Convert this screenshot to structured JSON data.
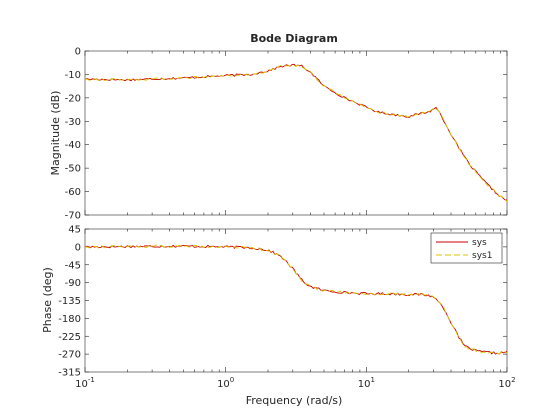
{
  "chart_data": {
    "type": "line",
    "title": "Bode Diagram",
    "xlabel": "Frequency  (rad/s)",
    "xscale": "log",
    "xlim": [
      0.1,
      100
    ],
    "x_tick_labels": [
      {
        "base": "10",
        "exp": "-1"
      },
      {
        "base": "10",
        "exp": "0"
      },
      {
        "base": "10",
        "exp": "1"
      },
      {
        "base": "10",
        "exp": "2"
      }
    ],
    "grid": false,
    "legend_position": "top-right",
    "colors": {
      "sys": "#cc0000",
      "sys1": "#d8c400"
    },
    "series": [
      {
        "name": "sys",
        "style": "solid"
      },
      {
        "name": "sys1",
        "style": "dashed"
      }
    ],
    "magnitude": {
      "ylabel": "Magnitude (dB)",
      "ylim": [
        -70,
        0
      ],
      "yticks": [
        0,
        -10,
        -20,
        -30,
        -40,
        -50,
        -60,
        -70
      ],
      "x": [
        0.1,
        0.2,
        0.5,
        1,
        1.5,
        2,
        2.5,
        3,
        3.5,
        4,
        5,
        7,
        10,
        12,
        15,
        20,
        25,
        28,
        31,
        33,
        38,
        45,
        55,
        70,
        85,
        100
      ],
      "values": [
        -12,
        -12.3,
        -11.5,
        -10.5,
        -10,
        -8.5,
        -6.5,
        -6,
        -6.5,
        -9,
        -15,
        -20,
        -24,
        -26,
        -27,
        -28,
        -26.5,
        -26,
        -24,
        -26,
        -33,
        -41,
        -49,
        -56,
        -61,
        -64
      ]
    },
    "phase": {
      "ylabel": "Phase (deg)",
      "ylim": [
        -315,
        45
      ],
      "yticks": [
        45,
        0,
        -45,
        -90,
        -135,
        -180,
        -225,
        -270,
        -315
      ],
      "x": [
        0.1,
        0.2,
        0.5,
        1,
        1.5,
        2,
        2.5,
        3,
        3.5,
        4,
        5,
        7,
        10,
        15,
        20,
        25,
        30,
        35,
        40,
        45,
        50,
        60,
        70,
        85,
        100
      ],
      "values": [
        0,
        1,
        2,
        0,
        -2,
        -8,
        -25,
        -55,
        -85,
        -100,
        -110,
        -115,
        -118,
        -118,
        -120,
        -120,
        -125,
        -150,
        -190,
        -225,
        -250,
        -262,
        -265,
        -268,
        -265
      ]
    }
  }
}
